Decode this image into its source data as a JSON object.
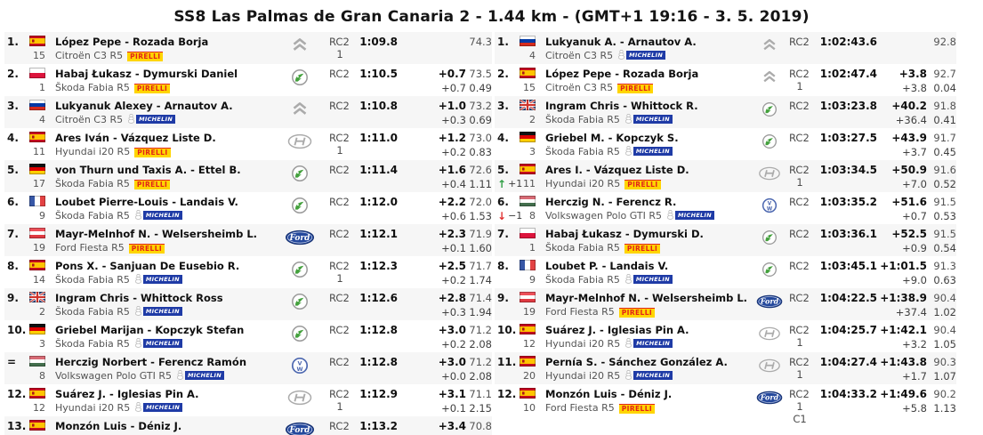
{
  "title": "SS8 Las Palmas de Gran Canaria 2 - 1.44 km - (GMT+1 19:16 - 3. 5. 2019)",
  "tyre_labels": {
    "pirelli": "PIRELLI",
    "michelin": "MICHELIN"
  },
  "colors": {
    "row_alt_bg": "#f6f6f6",
    "text_gray": "#545454",
    "pirelli_yellow": "#ffd500",
    "pirelli_red": "#e2231a",
    "michelin_navy": "#1f3ba6",
    "skoda_green": "#44a13d",
    "ford_blue": "#24489c",
    "vw_blue": "#4d68b0",
    "brand_silver": "#ababab",
    "promotion_green": "#2f9e44",
    "demotion_red": "#e03131"
  },
  "stage": {
    "rows": [
      {
        "pos": "1.",
        "flag": "es",
        "crew": "López Pepe - Rozada Borja",
        "num": "15",
        "car": "Citroën C3 R5",
        "tyre": "pirelli",
        "brand": "citroen",
        "cls": [
          "RC2",
          "1"
        ],
        "time": "1:09.8",
        "diff_total": "",
        "speed": "74.3",
        "diff_prev": "",
        "coef": ""
      },
      {
        "pos": "2.",
        "flag": "pl",
        "crew": "Habaj Łukasz - Dymurski Daniel",
        "num": "1",
        "car": "Škoda Fabia R5",
        "tyre": "pirelli",
        "brand": "skoda",
        "cls": [
          "RC2"
        ],
        "time": "1:10.5",
        "diff_total": "+0.7",
        "speed": "73.5",
        "diff_prev": "+0.7",
        "coef": "0.49"
      },
      {
        "pos": "3.",
        "flag": "ru",
        "crew": "Lukyanuk Alexey - Arnautov A.",
        "num": "4",
        "car": "Citroën C3 R5",
        "tyre": "michelin",
        "brand": "citroen",
        "cls": [
          "RC2"
        ],
        "time": "1:10.8",
        "diff_total": "+1.0",
        "speed": "73.2",
        "diff_prev": "+0.3",
        "coef": "0.69"
      },
      {
        "pos": "4.",
        "flag": "es",
        "crew": "Ares Iván - Vázquez Liste D.",
        "num": "11",
        "car": "Hyundai i20 R5",
        "tyre": "pirelli",
        "brand": "hyundai",
        "cls": [
          "RC2",
          "1"
        ],
        "time": "1:11.0",
        "diff_total": "+1.2",
        "speed": "73.0",
        "diff_prev": "+0.2",
        "coef": "0.83"
      },
      {
        "pos": "5.",
        "flag": "de",
        "crew": "von Thurn und Taxis A. - Ettel B.",
        "num": "17",
        "car": "Škoda Fabia R5",
        "tyre": "pirelli",
        "brand": "skoda",
        "cls": [
          "RC2"
        ],
        "time": "1:11.4",
        "diff_total": "+1.6",
        "speed": "72.6",
        "diff_prev": "+0.4",
        "coef": "1.11"
      },
      {
        "pos": "6.",
        "flag": "fr",
        "crew": "Loubet Pierre-Louis - Landais V.",
        "num": "9",
        "car": "Škoda Fabia R5",
        "tyre": "michelin",
        "brand": "skoda",
        "cls": [
          "RC2"
        ],
        "time": "1:12.0",
        "diff_total": "+2.2",
        "speed": "72.0",
        "diff_prev": "+0.6",
        "coef": "1.53"
      },
      {
        "pos": "7.",
        "flag": "at",
        "crew": "Mayr-Melnhof N. - Welsersheimb L.",
        "num": "19",
        "car": "Ford Fiesta R5",
        "tyre": "pirelli",
        "brand": "ford",
        "cls": [
          "RC2"
        ],
        "time": "1:12.1",
        "diff_total": "+2.3",
        "speed": "71.9",
        "diff_prev": "+0.1",
        "coef": "1.60"
      },
      {
        "pos": "8.",
        "flag": "es",
        "crew": "Pons X. - Sanjuan De Eusebio R.",
        "num": "14",
        "car": "Škoda Fabia R5",
        "tyre": "michelin",
        "brand": "skoda",
        "cls": [
          "RC2",
          "1"
        ],
        "time": "1:12.3",
        "diff_total": "+2.5",
        "speed": "71.7",
        "diff_prev": "+0.2",
        "coef": "1.74"
      },
      {
        "pos": "9.",
        "flag": "gb",
        "crew": "Ingram Chris - Whittock Ross",
        "num": "2",
        "car": "Škoda Fabia R5",
        "tyre": "michelin",
        "brand": "skoda",
        "cls": [
          "RC2"
        ],
        "time": "1:12.6",
        "diff_total": "+2.8",
        "speed": "71.4",
        "diff_prev": "+0.3",
        "coef": "1.94"
      },
      {
        "pos": "10.",
        "flag": "de",
        "crew": "Griebel Marijan - Kopczyk Stefan",
        "num": "3",
        "car": "Škoda Fabia R5",
        "tyre": "michelin",
        "brand": "skoda",
        "cls": [
          "RC2"
        ],
        "time": "1:12.8",
        "diff_total": "+3.0",
        "speed": "71.2",
        "diff_prev": "+0.2",
        "coef": "2.08"
      },
      {
        "pos": "=",
        "flag": "hu",
        "crew": "Herczig Norbert - Ferencz Ramón",
        "num": "8",
        "car": "Volkswagen Polo GTI R5",
        "tyre": "michelin",
        "brand": "vw",
        "cls": [
          "RC2"
        ],
        "time": "1:12.8",
        "diff_total": "+3.0",
        "speed": "71.2",
        "diff_prev": "+0.0",
        "coef": "2.08"
      },
      {
        "pos": "12.",
        "flag": "es",
        "crew": "Suárez J. - Iglesias Pin A.",
        "num": "12",
        "car": "Hyundai i20 R5",
        "tyre": "michelin",
        "brand": "hyundai",
        "cls": [
          "RC2",
          "1"
        ],
        "time": "1:12.9",
        "diff_total": "+3.1",
        "speed": "71.1",
        "diff_prev": "+0.1",
        "coef": "2.15"
      },
      {
        "pos": "13.",
        "flag": "es",
        "crew": "Monzón Luis - Déniz J.",
        "num": "",
        "car": "",
        "tyre": "",
        "brand": "ford",
        "cls": [
          "RC2"
        ],
        "time": "1:13.2",
        "diff_total": "+3.4",
        "speed": "70.8",
        "diff_prev": "",
        "coef": ""
      }
    ]
  },
  "overall": {
    "rows": [
      {
        "pos": "1.",
        "flag": "ru",
        "crew": "Lukyanuk A. - Arnautov A.",
        "num": "4",
        "car": "Citroën C3 R5",
        "tyre": "michelin",
        "brand": "citroen",
        "cls": [
          "RC2"
        ],
        "time": "1:02:43.6",
        "diff_total": "",
        "speed": "92.8",
        "diff_prev": "",
        "coef": ""
      },
      {
        "pos": "2.",
        "flag": "es",
        "crew": "López Pepe - Rozada Borja",
        "num": "15",
        "car": "Citroën C3 R5",
        "tyre": "pirelli",
        "brand": "citroen",
        "cls": [
          "RC2",
          "1"
        ],
        "time": "1:02:47.4",
        "diff_total": "+3.8",
        "speed": "92.7",
        "diff_prev": "+3.8",
        "coef": "0.04"
      },
      {
        "pos": "3.",
        "flag": "gb",
        "crew": "Ingram Chris - Whittock R.",
        "num": "2",
        "car": "Škoda Fabia R5",
        "tyre": "michelin",
        "brand": "skoda",
        "cls": [
          "RC2"
        ],
        "time": "1:03:23.8",
        "diff_total": "+40.2",
        "speed": "91.8",
        "diff_prev": "+36.4",
        "coef": "0.41"
      },
      {
        "pos": "4.",
        "flag": "de",
        "crew": "Griebel M. - Kopczyk S.",
        "num": "3",
        "car": "Škoda Fabia R5",
        "tyre": "michelin",
        "brand": "skoda",
        "cls": [
          "RC2"
        ],
        "time": "1:03:27.5",
        "diff_total": "+43.9",
        "speed": "91.7",
        "diff_prev": "+3.7",
        "coef": "0.45"
      },
      {
        "pos": "5.",
        "flag": "es",
        "crew": "Ares I. - Vázquez Liste D.",
        "num": "11",
        "car": "Hyundai i20 R5",
        "tyre": "pirelli",
        "brand": "hyundai",
        "cls": [
          "RC2",
          "1"
        ],
        "move": {
          "dir": "up",
          "label": "+1"
        },
        "time": "1:03:34.5",
        "diff_total": "+50.9",
        "speed": "91.6",
        "diff_prev": "+7.0",
        "coef": "0.52"
      },
      {
        "pos": "6.",
        "flag": "hu",
        "crew": "Herczig N. - Ferencz R.",
        "num": "8",
        "car": "Volkswagen Polo GTI R5",
        "tyre": "michelin",
        "brand": "vw",
        "cls": [
          "RC2"
        ],
        "move": {
          "dir": "down",
          "label": "−1"
        },
        "time": "1:03:35.2",
        "diff_total": "+51.6",
        "speed": "91.5",
        "diff_prev": "+0.7",
        "coef": "0.53"
      },
      {
        "pos": "7.",
        "flag": "pl",
        "crew": "Habaj Łukasz - Dymurski D.",
        "num": "1",
        "car": "Škoda Fabia R5",
        "tyre": "pirelli",
        "brand": "skoda",
        "cls": [
          "RC2"
        ],
        "time": "1:03:36.1",
        "diff_total": "+52.5",
        "speed": "91.5",
        "diff_prev": "+0.9",
        "coef": "0.54"
      },
      {
        "pos": "8.",
        "flag": "fr",
        "crew": "Loubet P. - Landais V.",
        "num": "9",
        "car": "Škoda Fabia R5",
        "tyre": "michelin",
        "brand": "skoda",
        "cls": [
          "RC2"
        ],
        "time": "1:03:45.1",
        "diff_total": "+1:01.5",
        "speed": "91.3",
        "diff_prev": "+9.0",
        "coef": "0.63"
      },
      {
        "pos": "9.",
        "flag": "at",
        "crew": "Mayr-Melnhof N. - Welsersheimb L.",
        "num": "19",
        "car": "Ford Fiesta R5",
        "tyre": "pirelli",
        "brand": "ford",
        "cls": [
          "RC2"
        ],
        "time": "1:04:22.5",
        "diff_total": "+1:38.9",
        "speed": "90.4",
        "diff_prev": "+37.4",
        "coef": "1.02"
      },
      {
        "pos": "10.",
        "flag": "es",
        "crew": "Suárez J. - Iglesias Pin A.",
        "num": "12",
        "car": "Hyundai i20 R5",
        "tyre": "michelin",
        "brand": "hyundai",
        "cls": [
          "RC2",
          "1"
        ],
        "time": "1:04:25.7",
        "diff_total": "+1:42.1",
        "speed": "90.4",
        "diff_prev": "+3.2",
        "coef": "1.05"
      },
      {
        "pos": "11.",
        "flag": "es",
        "crew": "Pernía S. - Sánchez González A.",
        "num": "20",
        "car": "Hyundai i20 R5",
        "tyre": "michelin",
        "brand": "hyundai",
        "cls": [
          "RC2",
          "1"
        ],
        "time": "1:04:27.4",
        "diff_total": "+1:43.8",
        "speed": "90.3",
        "diff_prev": "+1.7",
        "coef": "1.07"
      },
      {
        "pos": "12.",
        "flag": "es",
        "crew": "Monzón Luis - Déniz J.",
        "num": "10",
        "car": "Ford Fiesta R5",
        "tyre": "pirelli",
        "brand": "ford",
        "cls": [
          "RC2",
          "1",
          "C1"
        ],
        "time": "1:04:33.2",
        "diff_total": "+1:49.6",
        "speed": "90.2",
        "diff_prev": "+5.8",
        "coef": "1.13"
      }
    ]
  }
}
